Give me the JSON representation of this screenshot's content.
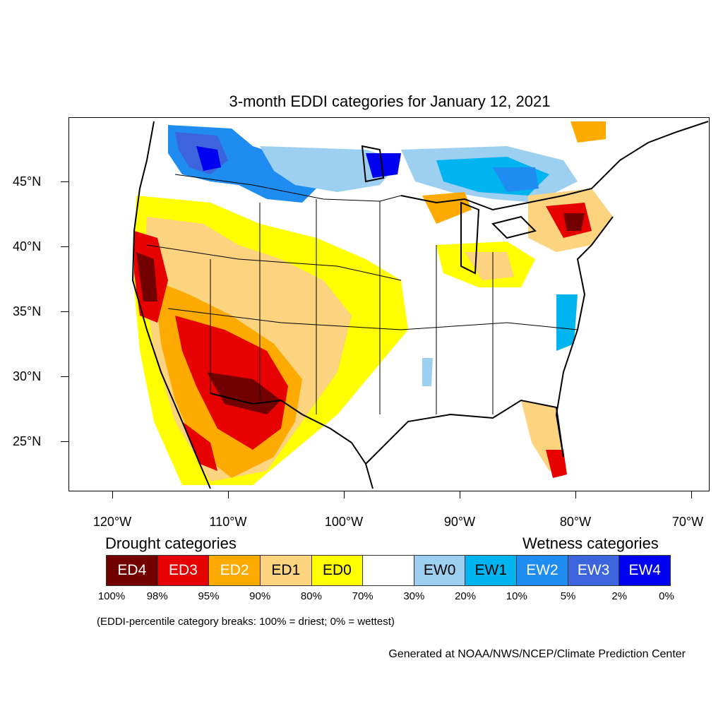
{
  "title": "3-month EDDI categories for January 12, 2021",
  "latitude_labels": [
    "45°N",
    "40°N",
    "35°N",
    "30°N",
    "25°N"
  ],
  "longitude_labels": [
    "120°W",
    "110°W",
    "100°W",
    "90°W",
    "80°W",
    "70°W"
  ],
  "legend": {
    "drought_heading": "Drought categories",
    "wetness_heading": "Wetness categories",
    "categories": [
      {
        "label": "ED4",
        "color": "#730000",
        "text_color": "#ffffff"
      },
      {
        "label": "ED3",
        "color": "#e60000",
        "text_color": "#ffffff"
      },
      {
        "label": "ED2",
        "color": "#ffaa00",
        "text_color": "#ffffff"
      },
      {
        "label": "ED1",
        "color": "#fcd37f",
        "text_color": "#000000"
      },
      {
        "label": "ED0",
        "color": "#ffff00",
        "text_color": "#000000"
      },
      {
        "label": "",
        "color": "#ffffff",
        "text_color": "#000000"
      },
      {
        "label": "EW0",
        "color": "#9dd0f0",
        "text_color": "#000000"
      },
      {
        "label": "EW1",
        "color": "#00b4f0",
        "text_color": "#000000"
      },
      {
        "label": "EW2",
        "color": "#1e8cf0",
        "text_color": "#ffffff"
      },
      {
        "label": "EW3",
        "color": "#3c64dc",
        "text_color": "#ffffff"
      },
      {
        "label": "EW4",
        "color": "#0000f0",
        "text_color": "#ffffff"
      }
    ],
    "percentiles": [
      "100%",
      "98%",
      "95%",
      "90%",
      "80%",
      "70%",
      "30%",
      "20%",
      "10%",
      "5%",
      "2%",
      "0%"
    ]
  },
  "note": "(EDDI-percentile category breaks: 100% = driest; 0% = wettest)",
  "credit": "Generated at NOAA/NWS/NCEP/Climate Prediction Center"
}
